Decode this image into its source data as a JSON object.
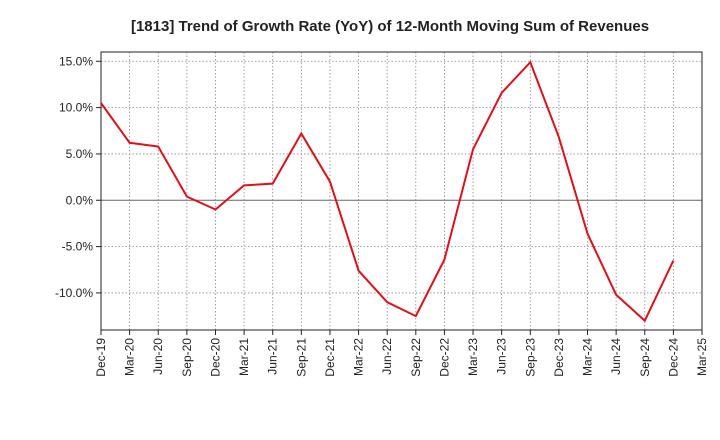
{
  "chart_data": {
    "type": "line",
    "title": "[1813]  Trend of Growth Rate (YoY) of 12-Month Moving Sum of Revenues",
    "xlabel": "",
    "ylabel": "",
    "x_tick_labels": [
      "Dec-19",
      "Mar-20",
      "Jun-20",
      "Sep-20",
      "Dec-20",
      "Mar-21",
      "Jun-21",
      "Sep-21",
      "Dec-21",
      "Mar-22",
      "Jun-22",
      "Sep-22",
      "Dec-22",
      "Mar-23",
      "Jun-23",
      "Sep-23",
      "Dec-23",
      "Mar-24",
      "Jun-24",
      "Sep-24",
      "Dec-24",
      "Mar-25"
    ],
    "y_tick_labels": [
      "15.0%",
      "10.0%",
      "5.0%",
      "0.0%",
      "-5.0%",
      "-10.0%"
    ],
    "y_ticks": [
      15,
      10,
      5,
      0,
      -5,
      -10
    ],
    "ylim": [
      -14,
      16
    ],
    "grid": true,
    "series": [
      {
        "color": "#e0101a",
        "x": [
          "Dec-19",
          "Mar-20",
          "Jun-20",
          "Sep-20",
          "Dec-20",
          "Mar-21",
          "Jun-21",
          "Sep-21",
          "Dec-21",
          "Mar-22",
          "Jun-22",
          "Sep-22",
          "Dec-22",
          "Mar-23",
          "Jun-23",
          "Sep-23",
          "Dec-23",
          "Mar-24",
          "Jun-24",
          "Sep-24",
          "Dec-24"
        ],
        "values": [
          10.5,
          6.2,
          5.8,
          0.4,
          -1.0,
          1.6,
          1.8,
          7.2,
          2.0,
          -7.6,
          -11.0,
          -12.5,
          -6.4,
          5.5,
          11.6,
          14.9,
          6.8,
          -3.6,
          -10.2,
          -13.0,
          -6.5
        ]
      }
    ]
  }
}
